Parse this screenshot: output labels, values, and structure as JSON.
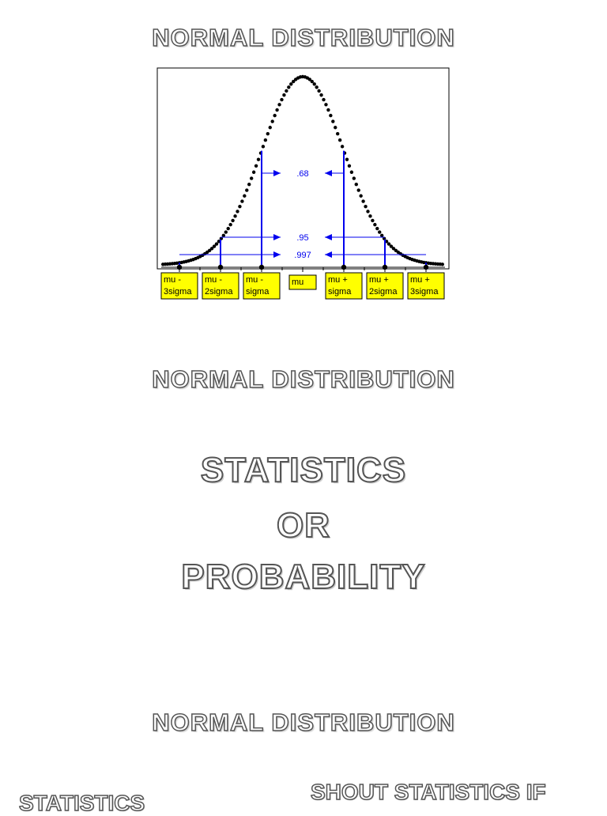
{
  "slide1": {
    "title": "NORMAL DISTRIBUTION"
  },
  "slide2": {
    "title": "NORMAL DISTRIBUTION",
    "lines": [
      "STATISTICS",
      "OR",
      "PROBABILITY"
    ]
  },
  "slide3": {
    "title": "NORMAL DISTRIBUTION",
    "left_text": "STATISTICS",
    "right_text": "SHOUT STATISTICS IF"
  },
  "chart_data": {
    "type": "line",
    "curve": "normal",
    "mu": 0,
    "sigma": 1,
    "xlim": [
      -3.4,
      3.4
    ],
    "bands": [
      {
        "k": 1,
        "label": ".68"
      },
      {
        "k": 2,
        "label": ".95"
      },
      {
        "k": 3,
        "label": ".997"
      }
    ],
    "tick_labels": [
      {
        "k": -3,
        "line1": "mu -",
        "line2": "3sigma"
      },
      {
        "k": -2,
        "line1": "mu -",
        "line2": "2sigma"
      },
      {
        "k": -1,
        "line1": "mu -",
        "line2": "sigma"
      },
      {
        "k": 0,
        "line1": "mu",
        "line2": ""
      },
      {
        "k": 1,
        "line1": "mu +",
        "line2": "sigma"
      },
      {
        "k": 2,
        "line1": "mu +",
        "line2": "2sigma"
      },
      {
        "k": 3,
        "line1": "mu +",
        "line2": "3sigma"
      }
    ],
    "colors": {
      "curve": "#000000",
      "bands": "#0000ee",
      "label_bg": "#ffff00"
    }
  }
}
